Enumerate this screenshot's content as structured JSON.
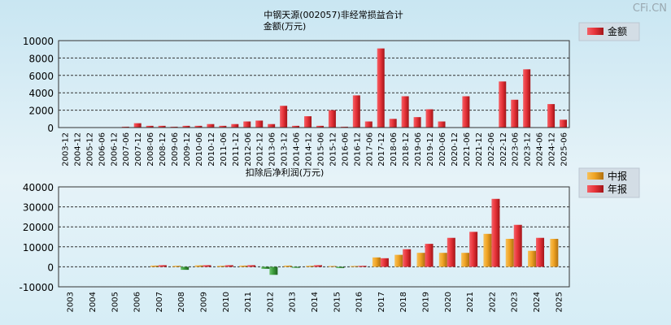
{
  "brand": "CFi.CN",
  "page_title": "中钢天源(002057)非经常损益合计",
  "colors": {
    "bar_red": "#e8343a",
    "bar_red_dark": "#a31418",
    "bar_orange": "#f0a424",
    "bar_green": "#3c9c3c"
  },
  "chart_data": [
    {
      "type": "bar",
      "title": "中钢天源(002057)非经常损益合计",
      "subtitle": "金额(万元)",
      "ylim": [
        0,
        10000
      ],
      "yticks": [
        0,
        2000,
        4000,
        6000,
        8000,
        10000
      ],
      "grid": true,
      "legend_placement": "right",
      "series": [
        {
          "name": "金额",
          "color": "#e8343a"
        }
      ],
      "categories": [
        "2003-12",
        "2004-12",
        "2005-12",
        "2006-06",
        "2006-12",
        "2007-06",
        "2007-12",
        "2008-06",
        "2008-12",
        "2009-06",
        "2009-12",
        "2010-06",
        "2010-12",
        "2011-06",
        "2011-12",
        "2012-06",
        "2012-12",
        "2013-06",
        "2013-12",
        "2014-06",
        "2014-12",
        "2015-06",
        "2015-12",
        "2016-06",
        "2016-12",
        "2017-06",
        "2017-12",
        "2018-06",
        "2018-12",
        "2019-06",
        "2019-12",
        "2020-06",
        "2020-12",
        "2021-06",
        "2021-12",
        "2022-06",
        "2022-12",
        "2023-06",
        "2023-12",
        "2024-06",
        "2024-12",
        "2025-06"
      ],
      "values": [
        0,
        0,
        0,
        0,
        0,
        100,
        500,
        200,
        200,
        100,
        200,
        200,
        400,
        200,
        400,
        700,
        800,
        400,
        2500,
        200,
        1300,
        200,
        2000,
        100,
        3700,
        700,
        9100,
        1000,
        3600,
        1200,
        2100,
        700,
        0,
        3600,
        0,
        0,
        5300,
        3200,
        6700,
        0,
        2700,
        900
      ]
    },
    {
      "type": "bar",
      "title": "扣除后净利润(万元)",
      "ylim": [
        -10000,
        40000
      ],
      "yticks": [
        -10000,
        0,
        10000,
        20000,
        30000,
        40000
      ],
      "grid": true,
      "legend_placement": "right",
      "categories": [
        "2003",
        "2004",
        "2005",
        "2006",
        "2007",
        "2008",
        "2009",
        "2010",
        "2011",
        "2012",
        "2013",
        "2014",
        "2015",
        "2016",
        "2017",
        "2018",
        "2019",
        "2020",
        "2021",
        "2022",
        "2023",
        "2024",
        "2025"
      ],
      "series": [
        {
          "name": "中报",
          "color": "#f0a424",
          "values": [
            0,
            0,
            0,
            0,
            600,
            500,
            700,
            500,
            600,
            -1000,
            600,
            500,
            400,
            400,
            4700,
            6000,
            7000,
            7000,
            7000,
            16500,
            14000,
            8000,
            14000
          ]
        },
        {
          "name": "年报",
          "color": "#e8343a",
          "values": [
            0,
            0,
            0,
            0,
            800,
            -1500,
            800,
            800,
            800,
            -4000,
            -500,
            800,
            -600,
            500,
            4300,
            8800,
            11500,
            14500,
            17500,
            34000,
            21000,
            14500,
            null
          ]
        }
      ]
    }
  ]
}
